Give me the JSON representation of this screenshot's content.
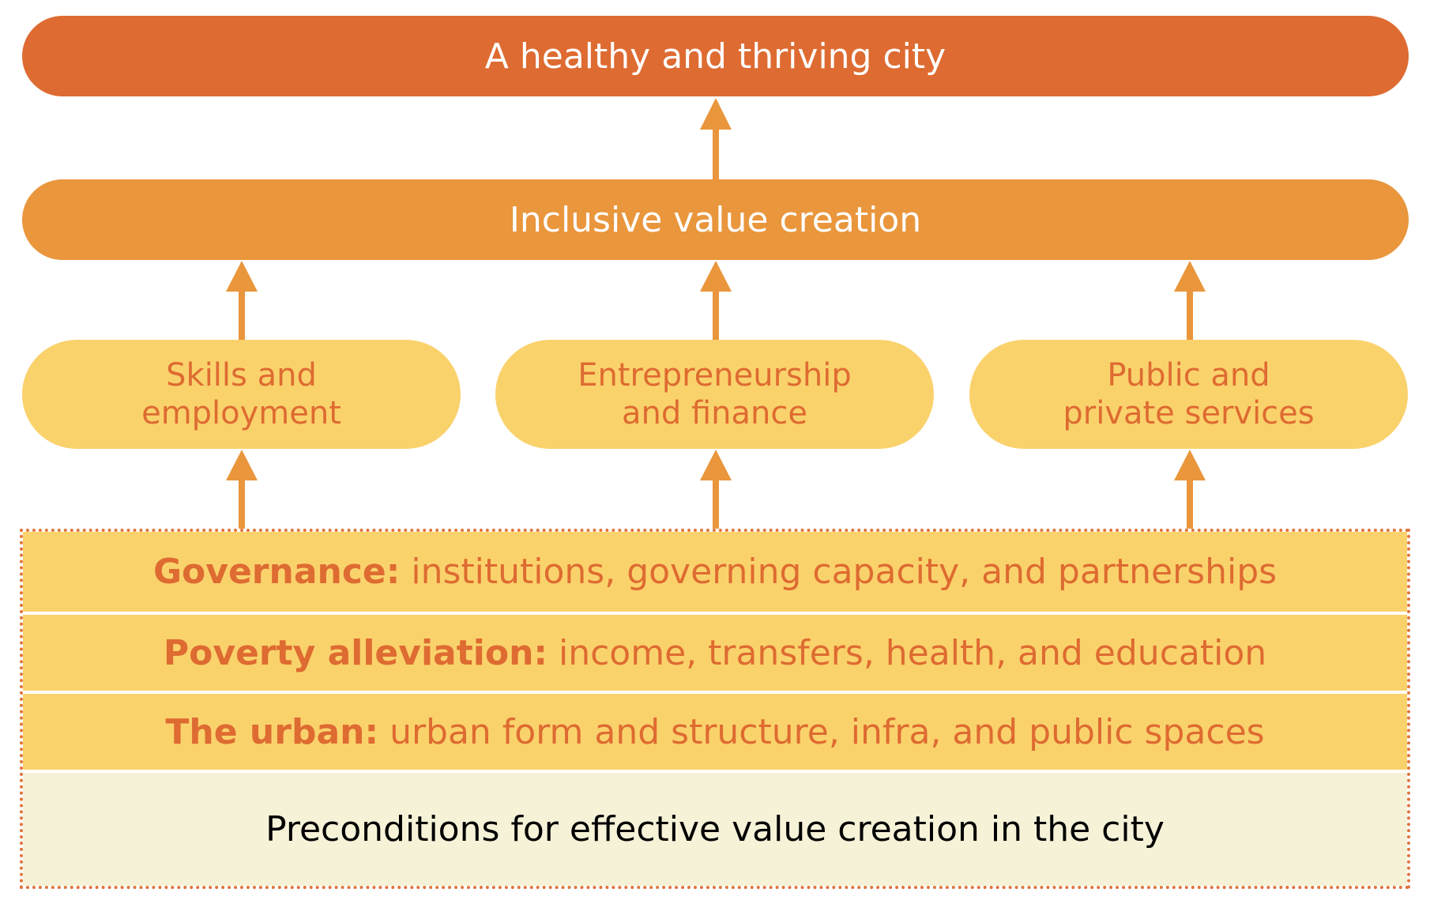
{
  "colors": {
    "goal": "#de6b31",
    "middle": "#e9963c",
    "pillar": "#fad26c",
    "band": "#fad26c",
    "base": "#f5f2d8",
    "arrow": "#e9963c",
    "text_orange": "#de6b31"
  },
  "goal": {
    "label": "A healthy and thriving city"
  },
  "middle": {
    "label": "Inclusive value creation"
  },
  "pillars": [
    {
      "label": "Skills and\nemployment"
    },
    {
      "label": "Entrepreneurship\nand finance"
    },
    {
      "label": "Public and\nprivate services"
    }
  ],
  "foundation": {
    "bands": [
      {
        "title": "Governance:",
        "text": "institutions, governing capacity, and partnerships"
      },
      {
        "title": "Poverty alleviation:",
        "text": "income, transfers, health, and education"
      },
      {
        "title": "The urban:",
        "text": "urban form and structure, infra, and public spaces"
      }
    ],
    "base_label": "Preconditions for effective value creation in the city"
  }
}
